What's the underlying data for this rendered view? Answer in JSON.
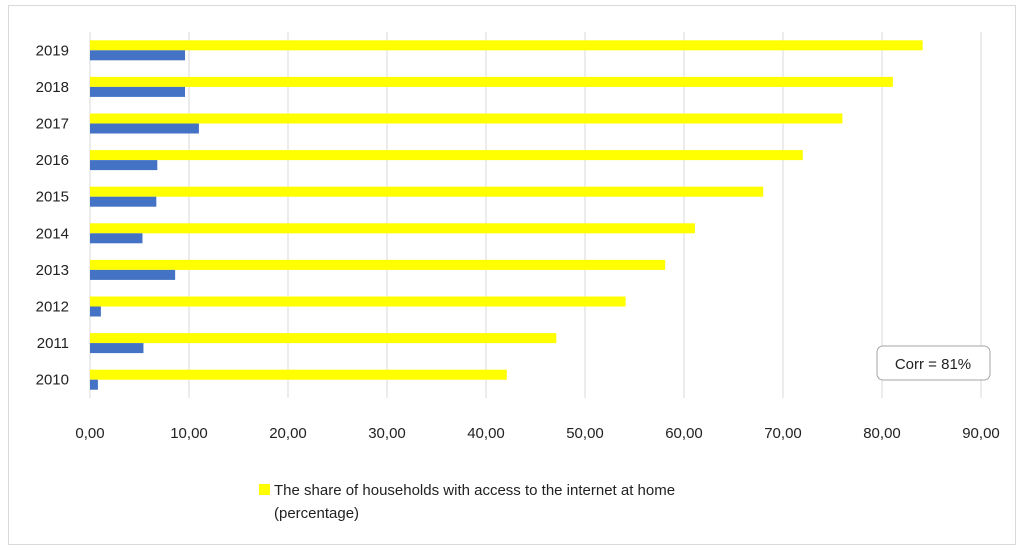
{
  "chart_data": {
    "type": "bar",
    "orientation": "horizontal",
    "categories": [
      "2010",
      "2011",
      "2012",
      "2013",
      "2014",
      "2015",
      "2016",
      "2017",
      "2018",
      "2019"
    ],
    "series": [
      {
        "name": "The share of households with access to the internet at home (percentage)",
        "color": "#ffff00",
        "values": [
          42.1,
          47.1,
          54.1,
          58.1,
          61.1,
          68.0,
          72.0,
          76.0,
          81.1,
          84.1
        ]
      },
      {
        "color": "#4472c4",
        "values": [
          0.8,
          5.4,
          1.1,
          8.6,
          5.3,
          6.7,
          6.8,
          11.0,
          9.6,
          9.6
        ]
      }
    ],
    "xlim": [
      0,
      90
    ],
    "x_ticks": [
      "0,00",
      "10,00",
      "20,00",
      "30,00",
      "40,00",
      "50,00",
      "60,00",
      "70,00",
      "80,00",
      "90,00"
    ],
    "grid": "vertical",
    "legend": {
      "placement": "bottom",
      "lines": [
        "The share of households with access to the internet at home",
        "(percentage)"
      ]
    },
    "annotation": "Corr = 81%"
  }
}
